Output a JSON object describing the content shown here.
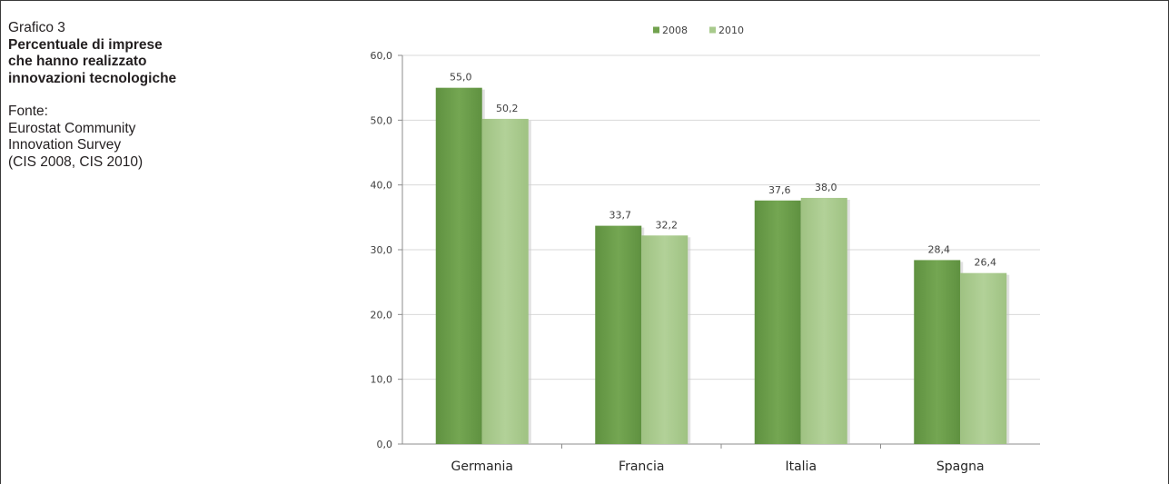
{
  "caption": {
    "label": "Grafico 3",
    "title": "Percentuale di imprese\nche hanno realizzato\ninnovazioni tecnologiche",
    "source_label": "Fonte:",
    "source": "Eurostat Community\nInnovation Survey\n(CIS 2008, CIS 2010)"
  },
  "chart_data": {
    "type": "bar",
    "categories": [
      "Germania",
      "Francia",
      "Italia",
      "Spagna"
    ],
    "series": [
      {
        "name": "2008",
        "values": [
          55.0,
          33.7,
          37.6,
          28.4
        ],
        "color": "#71a24e"
      },
      {
        "name": "2010",
        "values": [
          50.2,
          32.2,
          38.0,
          26.4
        ],
        "color": "#a8ca8c"
      }
    ],
    "data_labels": [
      [
        "55,0",
        "33,7",
        "37,6",
        "28,4"
      ],
      [
        "50,2",
        "32,2",
        "38,0",
        "26,4"
      ]
    ],
    "y_ticks": [
      "0,0",
      "10,0",
      "20,0",
      "30,0",
      "40,0",
      "50,0",
      "60,0"
    ],
    "ylim": [
      0,
      60
    ],
    "grid": true,
    "legend_position": "top-center",
    "title": "",
    "xlabel": "",
    "ylabel": ""
  }
}
